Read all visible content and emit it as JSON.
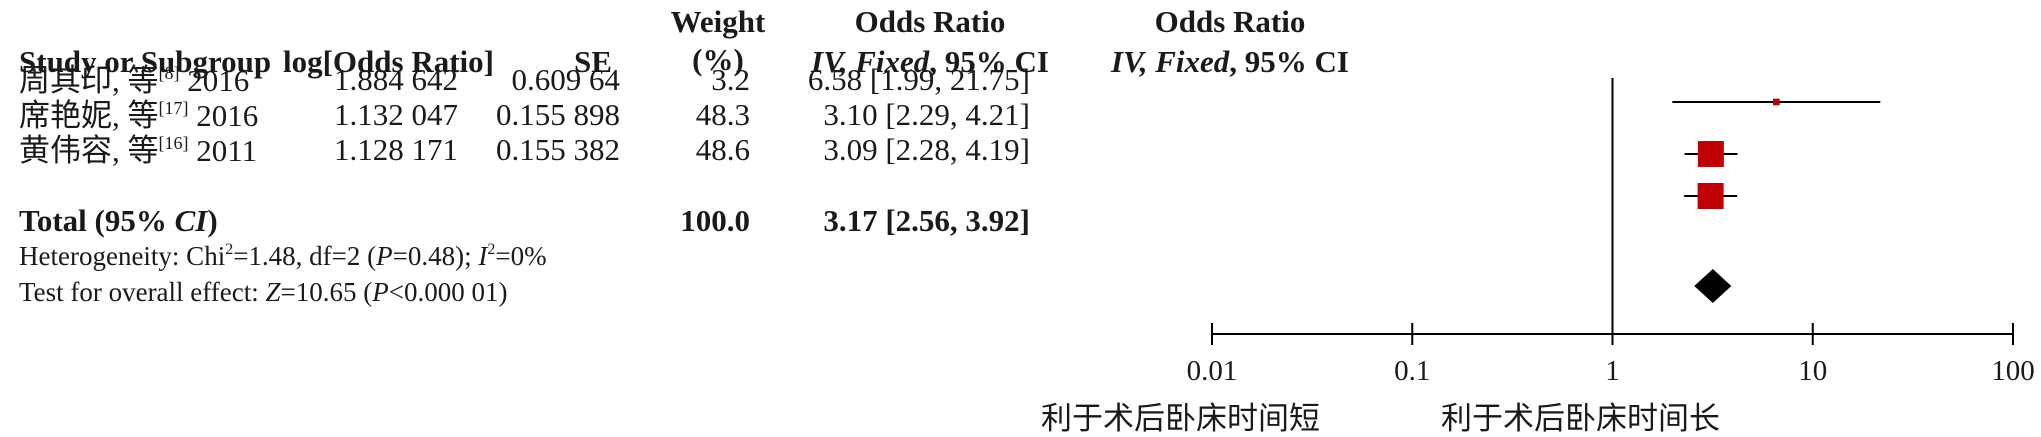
{
  "chart_data": {
    "type": "forest",
    "headers": {
      "study": "Study or Subgroup",
      "log_or": "log[Odds Ratio]",
      "se": "SE",
      "weight_line1": "Weight",
      "weight_line2": "(%)",
      "or_text_line1": "Odds Ratio",
      "or_text_line2_prefix": "IV, Fixed",
      "or_text_line2_suffix": ", 95% CI",
      "or_plot_line1": "Odds Ratio",
      "or_plot_line2_prefix": "IV, Fixed",
      "or_plot_line2_suffix": ", 95% CI"
    },
    "studies": [
      {
        "author": "周其印, 等",
        "ref": "[8]",
        "year": "2016",
        "log_or": "1.884 642",
        "se": "0.609 64",
        "weight": "3.2",
        "ci_text": "6.58 [1.99, 21.75]",
        "or": 6.58,
        "lower": 1.99,
        "upper": 21.75,
        "weight_value": 3.2
      },
      {
        "author": "席艳妮, 等",
        "ref": "[17]",
        "year": "2016",
        "log_or": "1.132 047",
        "se": "0.155 898",
        "weight": "48.3",
        "ci_text": "3.10 [2.29, 4.21]",
        "or": 3.1,
        "lower": 2.29,
        "upper": 4.21,
        "weight_value": 48.3
      },
      {
        "author": "黄伟容, 等",
        "ref": "[16]",
        "year": "2011",
        "log_or": "1.128 171",
        "se": "0.155 382",
        "weight": "48.6",
        "ci_text": "3.09 [2.28, 4.19]",
        "or": 3.09,
        "lower": 2.28,
        "upper": 4.19,
        "weight_value": 48.6
      }
    ],
    "total": {
      "label_prefix": "Total (95% ",
      "label_ci": "CI",
      "label_suffix": ")",
      "weight": "100.0",
      "ci_text": "3.17 [2.56, 3.92]",
      "or": 3.17,
      "lower": 2.56,
      "upper": 3.92
    },
    "heterogeneity": {
      "prefix": "Heterogeneity: Chi",
      "chi_sup": "2",
      "mid": "=1.48, df=2 (",
      "p_letter": "P",
      "p_value": "=0.48); ",
      "i_letter": "I",
      "i_sup": "2",
      "i_value": "=0%"
    },
    "overall_effect": {
      "prefix": "Test for overall effect: ",
      "z_letter": "Z",
      "z_value": "=10.65 (",
      "p_letter": "P",
      "p_value": "<0.000 01)"
    },
    "axis": {
      "scale": "log",
      "ticks": [
        0.01,
        0.1,
        1,
        10,
        100
      ],
      "tick_labels": [
        "0.01",
        "0.1",
        "1",
        "10",
        "100"
      ],
      "left_label": "利于术后卧床时间短",
      "right_label": "利于术后卧床时间长"
    },
    "colors": {
      "square": "#c00000",
      "diamond": "#000000",
      "line": "#000000"
    }
  }
}
